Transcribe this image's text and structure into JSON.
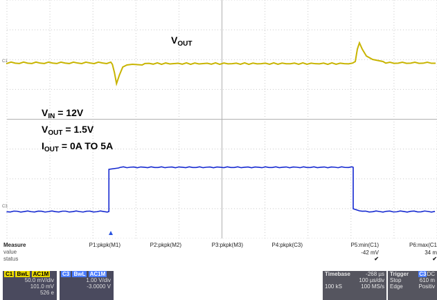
{
  "annotations": {
    "vout_label": {
      "main": "V",
      "sub": "OUT"
    },
    "vin_line": {
      "main": "V",
      "sub": "IN",
      "rest": " = 12V"
    },
    "vout_line": {
      "main": "V",
      "sub": "OUT",
      "rest": " = 1.5V"
    },
    "iout_line": {
      "main": "I",
      "sub": "OUT",
      "rest": " = 0A TO 5A"
    }
  },
  "channel_markers": {
    "c1": "C1",
    "c3": "C3"
  },
  "measure": {
    "title": "Measure",
    "row_value": "value",
    "row_status": "status",
    "params": [
      {
        "name": "P1:pkpk(M1)",
        "value": "",
        "status": ""
      },
      {
        "name": "P2:pkpk(M2)",
        "value": "",
        "status": ""
      },
      {
        "name": "P3:pkpk(M3)",
        "value": "",
        "status": ""
      },
      {
        "name": "P4:pkpk(C3)",
        "value": "",
        "status": ""
      },
      {
        "name": "P5:min(C1)",
        "value": "-42 mV",
        "status": "✔"
      },
      {
        "name": "P6:max(C1",
        "value": "34 m",
        "status": "✔"
      }
    ]
  },
  "ch1": {
    "tag": "C1",
    "mode": "BwL",
    "coupling": "AC1M",
    "scale": "50.0 mV/div",
    "offset": "101.0 mV",
    "extra": "526 e"
  },
  "ch3": {
    "tag": "C3",
    "mode": "BwL",
    "coupling": "AC1M",
    "scale": "1.00 V/div",
    "offset": "-3.0000 V"
  },
  "timebase": {
    "label": "Timebase",
    "delay": "-268 µs",
    "per_div": "100 µs/div",
    "samples": "100 kS",
    "rate": "100 MS/s"
  },
  "trigger": {
    "label": "Trigger",
    "tag": "C3",
    "mode_short": "DC",
    "mode": "Stop",
    "level": "610 m",
    "type": "Edge",
    "slope": "Positiv"
  },
  "colors": {
    "ch1": "#c8b400",
    "ch3": "#1428d0",
    "grid": "#c8c8c8",
    "panel": "#4a4a5e"
  },
  "waveform": {
    "time_axis_divs": 10,
    "vout_baseline_mv": 0,
    "vout_undershoot_mv": -42,
    "vout_overshoot_mv": 34,
    "iout_low_a": 0,
    "iout_high_a": 5,
    "step_up_div": 2.5,
    "step_down_div": 8.1
  }
}
